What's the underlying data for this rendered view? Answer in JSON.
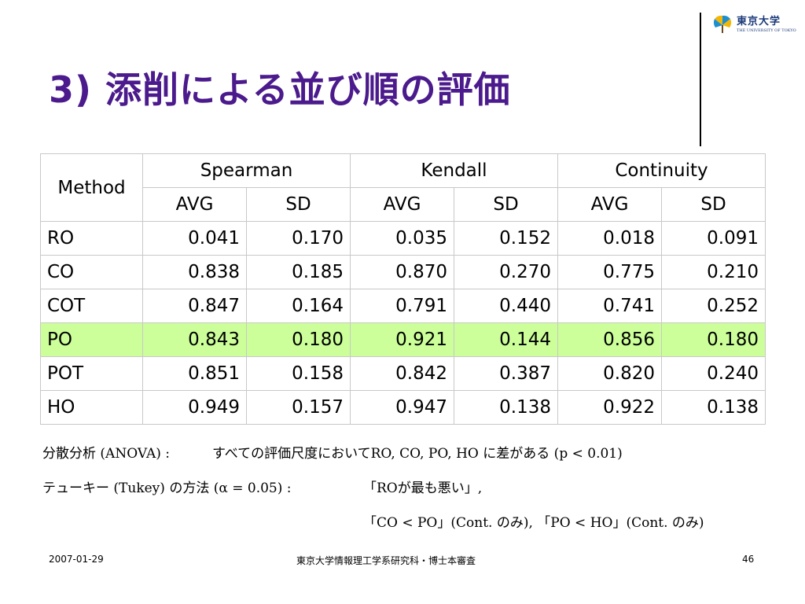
{
  "slide": {
    "title": "3) 添削による並び順の評価"
  },
  "logo": {
    "name": "東京大学",
    "subtitle": "THE UNIVERSITY OF TOKYO"
  },
  "table": {
    "method_header": "Method",
    "groups": [
      "Spearman",
      "Kendall",
      "Continuity"
    ],
    "subheaders": [
      "AVG",
      "SD",
      "AVG",
      "SD",
      "AVG",
      "SD"
    ],
    "rows": [
      {
        "method": "RO",
        "values": [
          "0.041",
          "0.170",
          "0.035",
          "0.152",
          "0.018",
          "0.091"
        ]
      },
      {
        "method": "CO",
        "values": [
          "0.838",
          "0.185",
          "0.870",
          "0.270",
          "0.775",
          "0.210"
        ]
      },
      {
        "method": "COT",
        "values": [
          "0.847",
          "0.164",
          "0.791",
          "0.440",
          "0.741",
          "0.252"
        ]
      },
      {
        "method": "PO",
        "values": [
          "0.843",
          "0.180",
          "0.921",
          "0.144",
          "0.856",
          "0.180"
        ]
      },
      {
        "method": "POT",
        "values": [
          "0.851",
          "0.158",
          "0.842",
          "0.387",
          "0.820",
          "0.240"
        ]
      },
      {
        "method": "HO",
        "values": [
          "0.949",
          "0.157",
          "0.947",
          "0.138",
          "0.922",
          "0.138"
        ]
      }
    ],
    "highlight_color": "#ccff99"
  },
  "notes": {
    "anova_label": "分散分析 (ANOVA) :",
    "anova_text": "すべての評価尺度においてRO, CO, PO, HO に差がある (p < 0.01)",
    "tukey_label": "テューキー (Tukey) の方法 (α = 0.05) :",
    "tukey_result1": "「ROが最も悪い」,",
    "tukey_result2": "「CO < PO」(Cont. のみ), 「PO < HO」(Cont. のみ)"
  },
  "footer": {
    "date": "2007-01-29",
    "affiliation": "東京大学情報理工学系研究科・博士本審査",
    "page": "46"
  },
  "colors": {
    "title": "#4b1a8c",
    "logo": "#1b3a7a"
  }
}
